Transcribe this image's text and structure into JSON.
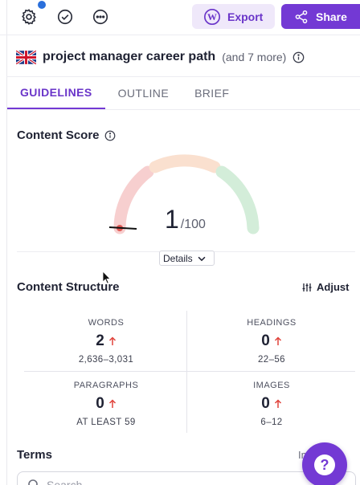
{
  "toolbar": {
    "icons": [
      "gear-icon",
      "check-circle-icon",
      "more-horizontal-icon"
    ],
    "export_label": "Export",
    "share_label": "Share",
    "colors": {
      "accent": "#7339d4",
      "export_bg": "#efe8fa",
      "notification": "#2a6fdb"
    }
  },
  "keyword": {
    "flag": "uk-flag-icon",
    "text": "project manager career path",
    "more": "(and 7 more)"
  },
  "tabs": [
    {
      "label": "GUIDELINES",
      "active": true
    },
    {
      "label": "OUTLINE",
      "active": false
    },
    {
      "label": "BRIEF",
      "active": false
    }
  ],
  "content_score": {
    "title": "Content Score",
    "value": "1",
    "max": "/100",
    "gauge_colors": [
      "#f7cfcf",
      "#fae0cf",
      "#d3edd9"
    ],
    "details_label": "Details"
  },
  "content_structure": {
    "title": "Content Structure",
    "adjust_label": "Adjust",
    "metrics": [
      {
        "label": "WORDS",
        "value": "2",
        "range": "2,636–3,031"
      },
      {
        "label": "HEADINGS",
        "value": "0",
        "range": "22–56"
      },
      {
        "label": "PARAGRAPHS",
        "value": "0",
        "range": "AT LEAST 59"
      },
      {
        "label": "IMAGES",
        "value": "0",
        "range": "6–12"
      }
    ]
  },
  "terms": {
    "title": "Terms",
    "import_label": "Import",
    "search_placeholder": "Search"
  },
  "help": {
    "label": "?"
  }
}
